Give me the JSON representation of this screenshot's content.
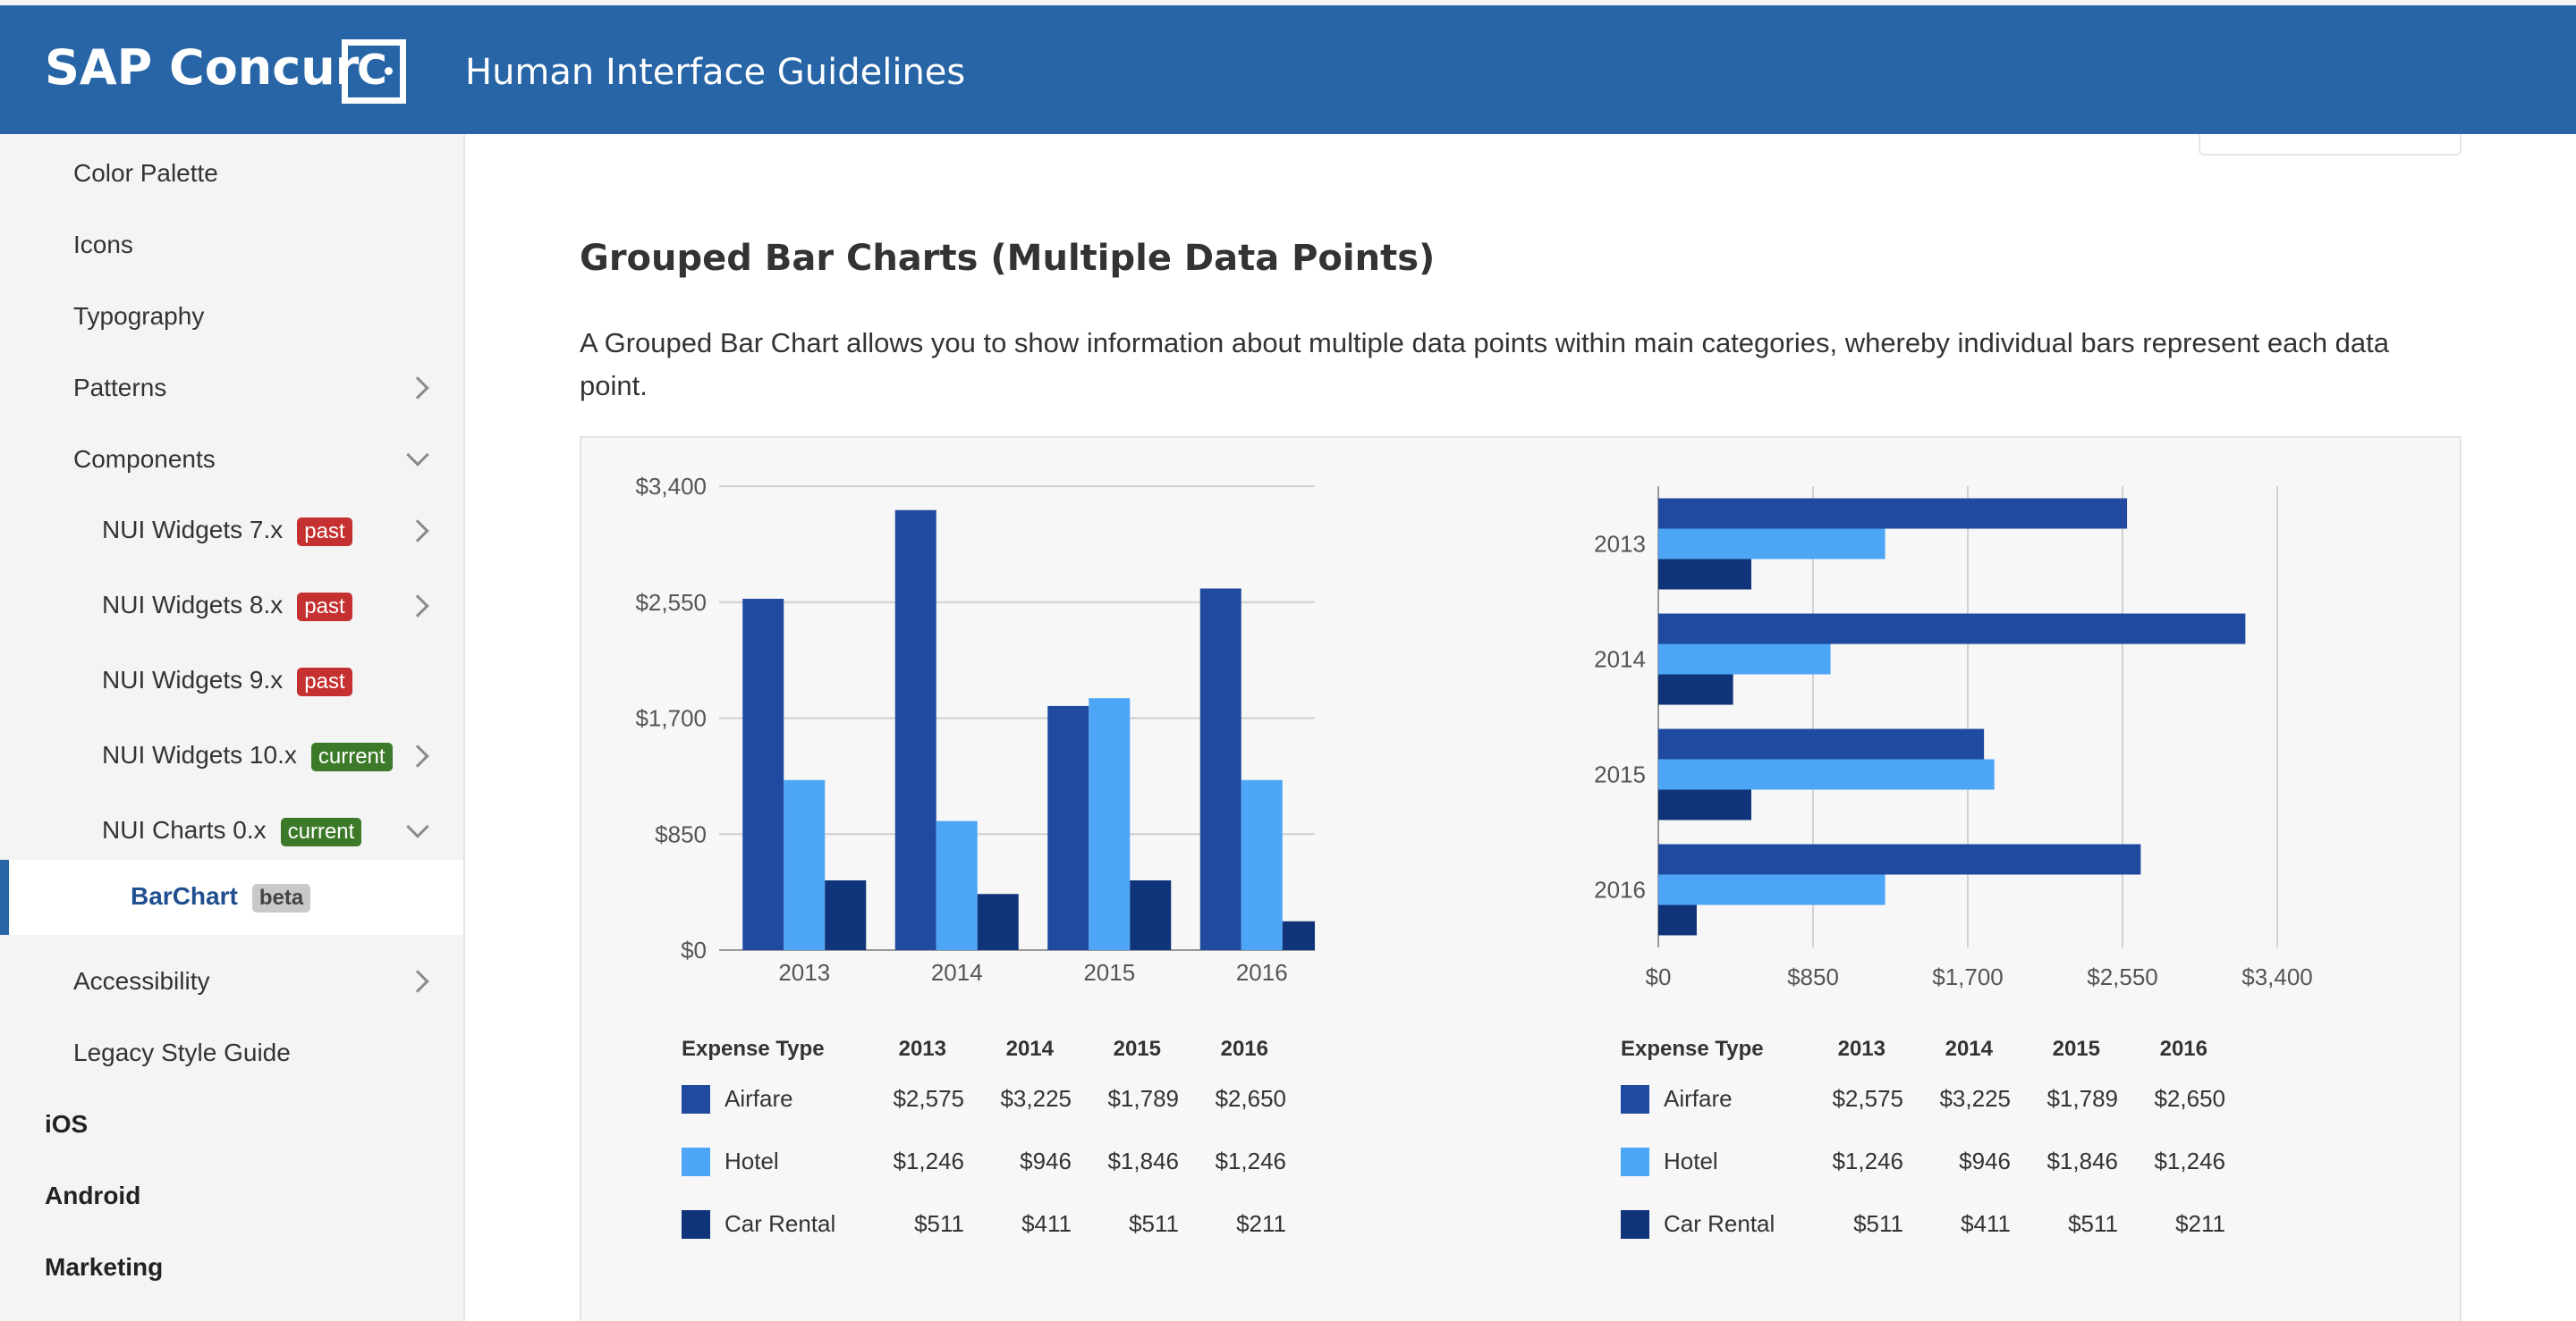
{
  "header": {
    "brand": "SAP Concur",
    "brand_mark": "C·",
    "title": "Human Interface Guidelines"
  },
  "sidebar": {
    "items": [
      {
        "label": "Color Palette",
        "level": 1
      },
      {
        "label": "Icons",
        "level": 1
      },
      {
        "label": "Typography",
        "level": 1
      },
      {
        "label": "Patterns",
        "level": 1,
        "chevron": "right"
      },
      {
        "label": "Components",
        "level": 1,
        "chevron": "down"
      },
      {
        "label": "NUI Widgets 7.x",
        "level": 2,
        "badge": "past",
        "chevron": "right"
      },
      {
        "label": "NUI Widgets 8.x",
        "level": 2,
        "badge": "past",
        "chevron": "right"
      },
      {
        "label": "NUI Widgets 9.x",
        "level": 2,
        "badge": "past"
      },
      {
        "label": "NUI Widgets 10.x",
        "level": 2,
        "badge": "current",
        "chevron": "right"
      },
      {
        "label": "NUI Charts 0.x",
        "level": 2,
        "badge": "current",
        "chevron": "down"
      },
      {
        "label": "BarChart",
        "level": 3,
        "badge": "beta",
        "active": true
      },
      {
        "label": "Accessibility",
        "level": 1,
        "chevron": "right"
      },
      {
        "label": "Legacy Style Guide",
        "level": 1
      },
      {
        "label": "iOS",
        "level": 0
      },
      {
        "label": "Android",
        "level": 0
      },
      {
        "label": "Marketing",
        "level": 0
      }
    ]
  },
  "main": {
    "heading": "Grouped Bar Charts (Multiple Data Points)",
    "intro": "A Grouped Bar Chart allows you to show information about multiple data points within main categories, whereby individual bars represent each data point."
  },
  "colors": {
    "airfare": "#1f4aa0",
    "hotel": "#4da6f5",
    "car_rental": "#10347a",
    "header": "#2765a7"
  },
  "chart_data": [
    {
      "type": "bar",
      "orientation": "vertical",
      "categories": [
        "2013",
        "2014",
        "2015",
        "2016"
      ],
      "series": [
        {
          "name": "Airfare",
          "values": [
            2575,
            3225,
            1789,
            2650
          ]
        },
        {
          "name": "Hotel",
          "values": [
            1246,
            946,
            1846,
            1246
          ]
        },
        {
          "name": "Car Rental",
          "values": [
            511,
            411,
            511,
            211
          ]
        }
      ],
      "ylim": [
        0,
        3400
      ],
      "yticks": [
        "$0",
        "$850",
        "$1,700",
        "$2,550",
        "$3,400"
      ],
      "grid": true,
      "legend": "table-below"
    },
    {
      "type": "bar",
      "orientation": "horizontal",
      "categories": [
        "2013",
        "2014",
        "2015",
        "2016"
      ],
      "series": [
        {
          "name": "Airfare",
          "values": [
            2575,
            3225,
            1789,
            2650
          ]
        },
        {
          "name": "Hotel",
          "values": [
            1246,
            946,
            1846,
            1246
          ]
        },
        {
          "name": "Car Rental",
          "values": [
            511,
            411,
            511,
            211
          ]
        }
      ],
      "xlim": [
        0,
        3400
      ],
      "xticks": [
        "$0",
        "$850",
        "$1,700",
        "$2,550",
        "$3,400"
      ],
      "grid": true,
      "legend": "table-below"
    }
  ],
  "legend_table": {
    "header": [
      "Expense Type",
      "2013",
      "2014",
      "2015",
      "2016"
    ],
    "rows": [
      {
        "name": "Airfare",
        "cells": [
          "$2,575",
          "$3,225",
          "$1,789",
          "$2,650"
        ]
      },
      {
        "name": "Hotel",
        "cells": [
          "$1,246",
          "$946",
          "$1,846",
          "$1,246"
        ]
      },
      {
        "name": "Car Rental",
        "cells": [
          "$511",
          "$411",
          "$511",
          "$211"
        ]
      }
    ]
  }
}
